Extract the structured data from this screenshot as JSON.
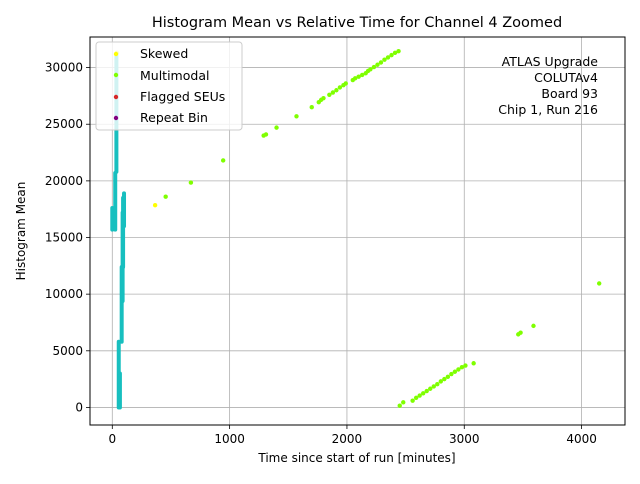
{
  "chart_data": {
    "type": "scatter",
    "title": "Histogram Mean vs Relative Time for Channel 4 Zoomed",
    "xlabel": "Time since start of run [minutes]",
    "ylabel": "Histogram Mean",
    "xlim": [
      -190,
      4370
    ],
    "ylim": [
      -1550,
      32700
    ],
    "xticks": [
      0,
      1000,
      2000,
      3000,
      4000
    ],
    "xtick_labels": [
      "0",
      "1000",
      "2000",
      "3000",
      "4000"
    ],
    "yticks": [
      0,
      5000,
      10000,
      15000,
      20000,
      25000,
      30000
    ],
    "ytick_labels": [
      "0",
      "5000",
      "10000",
      "15000",
      "20000",
      "25000",
      "30000"
    ],
    "grid": true,
    "legend_position": "top-left",
    "annotation_lines": [
      "ATLAS Upgrade",
      "COLUTAv4",
      "Board 93",
      "Chip 1, Run 216"
    ],
    "colors": {
      "skewed": "#ffff00",
      "multimodal": "#7fff00",
      "flagged_seus": "#d62728",
      "repeat_bin": "#800080",
      "normal": "#17bfbf",
      "grid": "#b0b0b0",
      "axis": "#000000"
    },
    "series": [
      {
        "name": "Skewed",
        "key": "skewed",
        "points": [
          [
            365,
            17850
          ],
          [
            40,
            31300
          ]
        ]
      },
      {
        "name": "Multimodal",
        "key": "multimodal",
        "points": [
          [
            455,
            18600
          ],
          [
            670,
            19850
          ],
          [
            945,
            21800
          ],
          [
            1290,
            24000
          ],
          [
            1310,
            24100
          ],
          [
            1400,
            24700
          ],
          [
            1570,
            25700
          ],
          [
            1700,
            26500
          ],
          [
            1760,
            26950
          ],
          [
            1780,
            27150
          ],
          [
            1800,
            27300
          ],
          [
            1850,
            27600
          ],
          [
            1880,
            27800
          ],
          [
            1910,
            28000
          ],
          [
            1940,
            28250
          ],
          [
            1970,
            28450
          ],
          [
            1990,
            28600
          ],
          [
            2050,
            28900
          ],
          [
            2070,
            29050
          ],
          [
            2100,
            29200
          ],
          [
            2130,
            29350
          ],
          [
            2160,
            29500
          ],
          [
            2180,
            29700
          ],
          [
            2200,
            29850
          ],
          [
            2230,
            30050
          ],
          [
            2260,
            30250
          ],
          [
            2290,
            30450
          ],
          [
            2320,
            30700
          ],
          [
            2350,
            30900
          ],
          [
            2380,
            31100
          ],
          [
            2410,
            31300
          ],
          [
            2440,
            31450
          ],
          [
            2450,
            150
          ],
          [
            2480,
            450
          ],
          [
            2560,
            600
          ],
          [
            2590,
            850
          ],
          [
            2620,
            1050
          ],
          [
            2650,
            1250
          ],
          [
            2680,
            1450
          ],
          [
            2710,
            1650
          ],
          [
            2740,
            1850
          ],
          [
            2770,
            2050
          ],
          [
            2800,
            2300
          ],
          [
            2830,
            2500
          ],
          [
            2860,
            2700
          ],
          [
            2890,
            2950
          ],
          [
            2920,
            3150
          ],
          [
            2950,
            3350
          ],
          [
            2980,
            3550
          ],
          [
            3010,
            3700
          ],
          [
            3080,
            3900
          ],
          [
            3460,
            6450
          ],
          [
            3480,
            6600
          ],
          [
            3590,
            7200
          ],
          [
            4150,
            10950
          ]
        ]
      },
      {
        "name": "Flagged SEUs",
        "key": "flagged_seus",
        "points": []
      },
      {
        "name": "Repeat Bin",
        "key": "repeat_bin",
        "points": []
      },
      {
        "key": "normal",
        "segments": [
          [
            [
              0,
              15700
            ],
            [
              0,
              17600
            ]
          ],
          [
            [
              25,
              15700
            ],
            [
              25,
              20700
            ]
          ],
          [
            [
              35,
              20800
            ],
            [
              35,
              31200
            ]
          ],
          [
            [
              55,
              0
            ],
            [
              55,
              5800
            ]
          ],
          [
            [
              65,
              0
            ],
            [
              65,
              3000
            ]
          ],
          [
            [
              80,
              5800
            ],
            [
              80,
              12400
            ]
          ],
          [
            [
              88,
              9400
            ],
            [
              88,
              17200
            ]
          ],
          [
            [
              100,
              16000
            ],
            [
              100,
              18900
            ]
          ],
          [
            [
              92,
              12400
            ],
            [
              92,
              18500
            ]
          ]
        ]
      }
    ]
  }
}
